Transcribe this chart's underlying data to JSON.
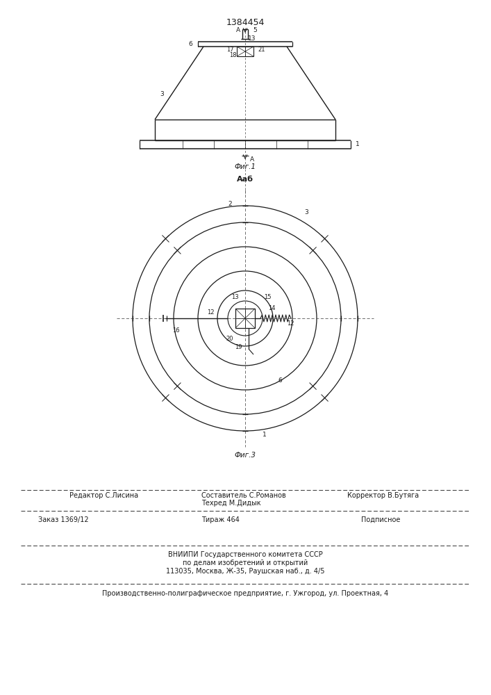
{
  "patent_number": "1384454",
  "fig1_caption": "Фиг.1",
  "fig3_caption": "Фиг.3",
  "fig2_label": "Ааб",
  "bg_color": "#ffffff",
  "line_color": "#1a1a1a",
  "text_color": "#1a1a1a",
  "footer_editor": "Редактор С.Лисина",
  "footer_composer": "Составитель С.Романов",
  "footer_corrector": "Корректор В.Бутяга",
  "footer_techred": "Техред М.Дидык",
  "footer_zakaz": "Заказ 1369/12",
  "footer_tirazh": "Тираж 464",
  "footer_podpisnoe": "Подписное",
  "footer_vniip1": "ВНИИПИ Государственного комитета СССР",
  "footer_vniip2": "по делам изобретений и открытий",
  "footer_vniip3": "113035, Москва, Ж-35, Раушская наб., д. 4/5",
  "footer_prod": "Производственно-полиграфическое предприятие, г. Ужгород, ул. Проектная, 4"
}
